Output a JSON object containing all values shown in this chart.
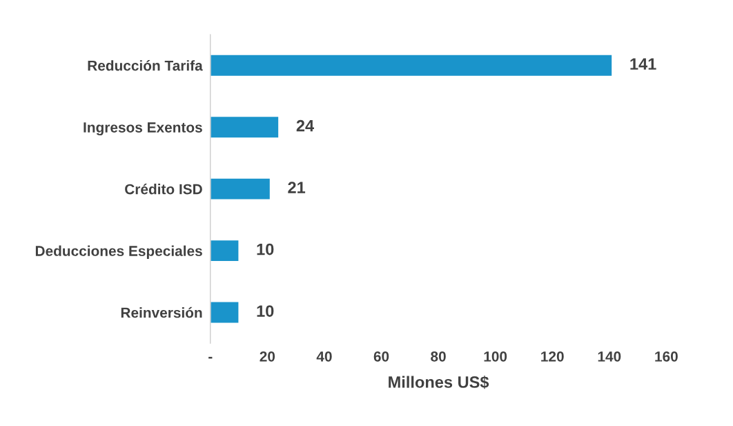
{
  "chart_data": {
    "type": "bar",
    "orientation": "horizontal",
    "xlabel": "Millones US$",
    "categories": [
      "Reducción Tarifa",
      "Ingresos Exentos",
      "Crédito ISD",
      "Deducciones Especiales",
      "Reinversión"
    ],
    "values": [
      141,
      24,
      21,
      10,
      10
    ],
    "color": "#1a94cb",
    "data_labels": true,
    "xlim": [
      0,
      160
    ],
    "xticks": [
      {
        "value": 0,
        "label": "-"
      },
      20,
      40,
      60,
      80,
      100,
      120,
      140,
      160
    ],
    "grid": false,
    "legend": false
  }
}
